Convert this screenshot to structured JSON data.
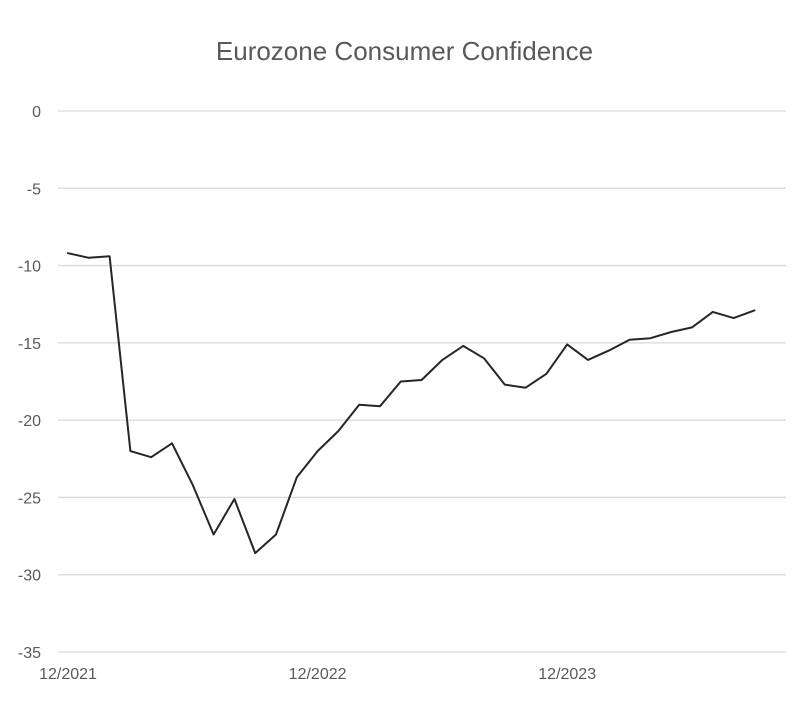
{
  "chart_data": {
    "type": "line",
    "title": "Eurozone Consumer Confidence",
    "xlabel": "",
    "ylabel": "",
    "ylim": [
      -35,
      0
    ],
    "yticks": [
      0,
      -5,
      -10,
      -15,
      -20,
      -25,
      -30,
      -35
    ],
    "ytick_labels": [
      "0",
      "-5",
      "-10",
      "-15",
      "-20",
      "-25",
      "-30",
      "-35"
    ],
    "xtick_labels": [
      "12/2021",
      "12/2022",
      "12/2023"
    ],
    "xtick_index": [
      0,
      12,
      24
    ],
    "grid": "horizontal",
    "legend": "none",
    "colors": {
      "line": "#262626",
      "grid": "#d9d9d9",
      "text": "#595959"
    },
    "x": [
      "12/2021",
      "01/2022",
      "02/2022",
      "03/2022",
      "04/2022",
      "05/2022",
      "06/2022",
      "07/2022",
      "08/2022",
      "09/2022",
      "10/2022",
      "11/2022",
      "12/2022",
      "01/2023",
      "02/2023",
      "03/2023",
      "04/2023",
      "05/2023",
      "06/2023",
      "07/2023",
      "08/2023",
      "09/2023",
      "10/2023",
      "11/2023",
      "12/2023",
      "01/2024",
      "02/2024",
      "03/2024",
      "04/2024",
      "05/2024",
      "06/2024",
      "07/2024",
      "08/2024",
      "09/2024"
    ],
    "series": [
      {
        "values": [
          -9.2,
          -9.5,
          -9.4,
          -22.0,
          -22.4,
          -21.5,
          -24.2,
          -27.4,
          -25.1,
          -28.6,
          -27.4,
          -23.7,
          -22.0,
          -20.7,
          -19.0,
          -19.1,
          -17.5,
          -17.4,
          -16.1,
          -15.2,
          -16.0,
          -17.7,
          -17.9,
          -17.0,
          -15.1,
          -16.1,
          -15.5,
          -14.8,
          -14.7,
          -14.3,
          -14.0,
          -13.0,
          -13.4,
          -12.9
        ]
      }
    ]
  }
}
